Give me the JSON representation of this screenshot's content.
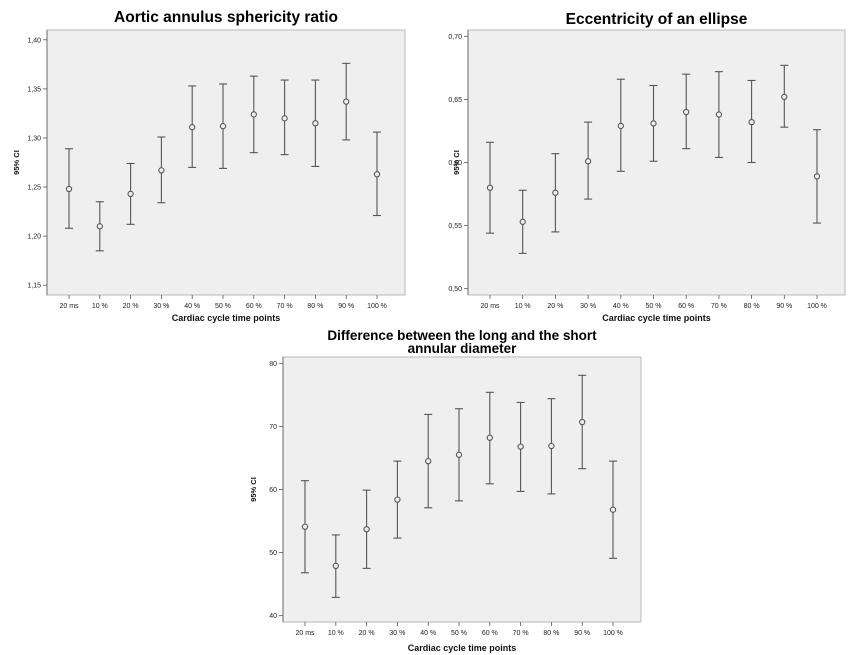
{
  "chart_data": [
    {
      "type": "errorbar",
      "title_lines": [
        "Aortic annulus sphericity ratio"
      ],
      "xlabel": "Cardiac cycle time points",
      "ylabel": "95% CI",
      "categories": [
        "20 ms",
        "10 %",
        "20 %",
        "30 %",
        "40 %",
        "50 %",
        "60 %",
        "70 %",
        "80 %",
        "90 %",
        "100 %"
      ],
      "yticks": [
        "1,15",
        "1,20",
        "1,25",
        "1,30",
        "1,35",
        "1,40"
      ],
      "ylim": [
        1.14,
        1.41
      ],
      "means": [
        1.248,
        1.21,
        1.243,
        1.267,
        1.311,
        1.312,
        1.324,
        1.32,
        1.315,
        1.337,
        1.263
      ],
      "lower": [
        1.208,
        1.185,
        1.212,
        1.234,
        1.27,
        1.269,
        1.285,
        1.283,
        1.271,
        1.298,
        1.221
      ],
      "upper": [
        1.289,
        1.235,
        1.274,
        1.301,
        1.353,
        1.355,
        1.363,
        1.359,
        1.359,
        1.376,
        1.306
      ]
    },
    {
      "type": "errorbar",
      "title_lines": [
        "Eccentricity of an ellipse"
      ],
      "xlabel": "Cardiac cycle time points",
      "ylabel": "95% CI",
      "categories": [
        "20 ms",
        "10 %",
        "20 %",
        "30 %",
        "40 %",
        "50 %",
        "60 %",
        "70 %",
        "80 %",
        "90 %",
        "100 %"
      ],
      "yticks": [
        "0,50",
        "0,55",
        "0,60",
        "0,65",
        "0,70"
      ],
      "ylim": [
        0.495,
        0.705
      ],
      "means": [
        0.58,
        0.553,
        0.576,
        0.601,
        0.629,
        0.631,
        0.64,
        0.638,
        0.632,
        0.652,
        0.589
      ],
      "lower": [
        0.544,
        0.528,
        0.545,
        0.571,
        0.593,
        0.601,
        0.611,
        0.604,
        0.6,
        0.628,
        0.552
      ],
      "upper": [
        0.616,
        0.578,
        0.607,
        0.632,
        0.666,
        0.661,
        0.67,
        0.672,
        0.665,
        0.677,
        0.626
      ]
    },
    {
      "type": "errorbar",
      "title_lines": [
        "Difference between the long and the short",
        "annular diameter"
      ],
      "xlabel": "Cardiac cycle time points",
      "ylabel": "95% CI",
      "categories": [
        "20 ms",
        "10 %",
        "20 %",
        "30 %",
        "40 %",
        "50 %",
        "60 %",
        "70 %",
        "80 %",
        "90 %",
        "100 %"
      ],
      "yticks": [
        "40",
        "50",
        "60",
        "70",
        "80"
      ],
      "ylim": [
        39,
        81
      ],
      "means": [
        54.1,
        47.9,
        53.7,
        58.4,
        64.5,
        65.5,
        68.2,
        66.8,
        66.9,
        70.7,
        56.8
      ],
      "lower": [
        46.8,
        42.9,
        47.5,
        52.3,
        57.1,
        58.2,
        60.9,
        59.7,
        59.3,
        63.3,
        49.1
      ],
      "upper": [
        61.4,
        52.8,
        59.9,
        64.5,
        71.9,
        72.8,
        75.4,
        73.8,
        74.4,
        78.1,
        64.5
      ]
    }
  ]
}
